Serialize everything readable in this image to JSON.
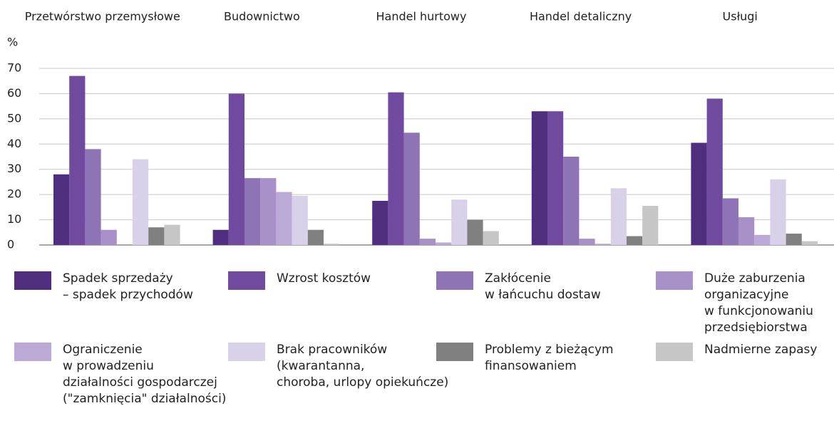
{
  "chart_data": {
    "type": "bar",
    "ylabel": "%",
    "categories": [
      "Przetwórstwo przemysłowe",
      "Budownictwo",
      "Handel hurtowy",
      "Handel detaliczny",
      "Usługi"
    ],
    "series": [
      {
        "name": "Spadek sprzedaży\n– spadek przychodów",
        "color": "#4f2d7f",
        "values": [
          28,
          6,
          17.5,
          53,
          40.5
        ]
      },
      {
        "name": "Wzrost kosztów",
        "color": "#6f4a9e",
        "values": [
          67,
          60,
          60.5,
          53,
          58
        ]
      },
      {
        "name": "Zakłócenie\nw łańcuchu dostaw",
        "color": "#8e73b5",
        "values": [
          38,
          26.5,
          44.5,
          35,
          18.5
        ]
      },
      {
        "name": "Duże zaburzenia\norganizacyjne\nw funkcjonowaniu\nprzedsiębiorstwa",
        "color": "#a890c8",
        "values": [
          6,
          26.5,
          2.5,
          2.5,
          11
        ]
      },
      {
        "name": "Ograniczenie\nw prowadzeniu\ndziałalności gospodarczej\n(\"zamknięcia\" działalności)",
        "color": "#bcaad6",
        "values": [
          0,
          21,
          1,
          0.5,
          4
        ]
      },
      {
        "name": "Brak pracowników\n(kwarantanna,\nchoroba, urlopy opiekuńcze)",
        "color": "#d9d1e9",
        "values": [
          34,
          19.5,
          18,
          22.5,
          26
        ]
      },
      {
        "name": "Problemy z bieżącym\nfinansowaniem",
        "color": "#808080",
        "values": [
          7,
          6,
          10,
          3.5,
          4.5
        ]
      },
      {
        "name": "Nadmierne zapasy",
        "color": "#c6c6c6",
        "values": [
          8,
          0.5,
          5.5,
          15.5,
          1.5
        ]
      }
    ],
    "ylim": [
      0,
      70
    ],
    "yticks": [
      0,
      10,
      20,
      30,
      40,
      50,
      60,
      70
    ],
    "grid": true
  }
}
